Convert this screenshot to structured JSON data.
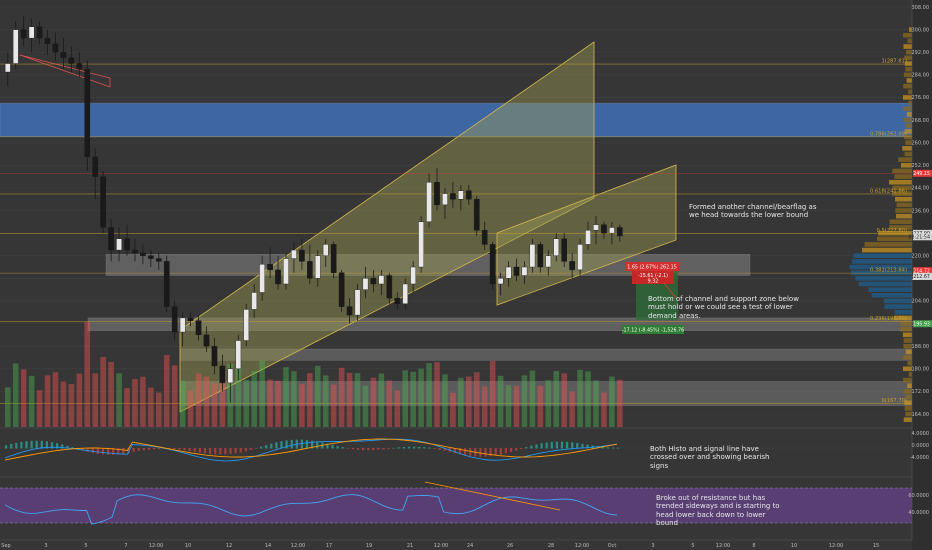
{
  "chart_data": {
    "type": "candlestick",
    "price_axis": {
      "ticks": [
        "308.00",
        "300.00",
        "292.00",
        "284.00",
        "276.00",
        "268.00",
        "260.00",
        "252.00",
        "244.00",
        "236.00",
        "228.00",
        "220.00",
        "212.00",
        "204.00",
        "196.00",
        "188.00",
        "180.00",
        "172.00",
        "164.00"
      ]
    },
    "macd_axis": {
      "ticks": [
        "4.0000",
        "0.0000",
        "-4.0000"
      ]
    },
    "rsi_axis": {
      "ticks": [
        "60.0000",
        "40.0000"
      ]
    },
    "time_axis": {
      "labels": [
        "Sep",
        "3",
        "5",
        "7",
        "12:00",
        "10",
        "12",
        "14",
        "12:00",
        "17",
        "19",
        "21",
        "12:00",
        "24",
        "26",
        "28",
        "12:00",
        "Oct",
        "3",
        "5",
        "12:00",
        "8",
        "10",
        "12:00",
        "15"
      ]
    },
    "fib_levels": [
      {
        "ratio": "1",
        "label": "1(287.81)",
        "price": 287.81
      },
      {
        "ratio": "0.786",
        "label": "0.786(262.09)",
        "price": 262.09
      },
      {
        "ratio": "0.618",
        "label": "0.618(241.86)",
        "price": 241.86
      },
      {
        "ratio": "0.5",
        "label": "0.5(227.80)",
        "price": 227.8
      },
      {
        "ratio": "0.382",
        "label": "0.382(213.84)",
        "price": 213.84
      },
      {
        "ratio": "0.236",
        "label": "0.236(196.70)",
        "price": 196.7
      },
      {
        "ratio": "0",
        "label": "0(167.70)",
        "price": 167.7
      }
    ],
    "price_labels": [
      {
        "text": "249.15",
        "color": "#e53935",
        "price": 249.15
      },
      {
        "text": "227.90",
        "color": "#e0e0e0",
        "price": 227.9
      },
      {
        "text": "03:21:54",
        "color": "#e0e0e0",
        "price": 226.7
      },
      {
        "text": "214.72",
        "color": "#e53935",
        "price": 214.72
      },
      {
        "text": "212.67",
        "color": "#e0e0e0",
        "price": 212.67
      },
      {
        "text": "195.93",
        "color": "#43a047",
        "price": 195.93
      }
    ],
    "position_tool": {
      "stop_label": "1.65 (2.67%) 262.15",
      "stop_sub1": "-15.61 (-2.1)",
      "stop_sub2": "9.32",
      "target_label": "-17.12 (-8.45%) -1,526.76"
    },
    "zones": [
      {
        "kind": "blue-supply",
        "top": 274.0,
        "bottom": 262.0
      },
      {
        "kind": "gray-support",
        "top": 220.5,
        "bottom": 213.0
      },
      {
        "kind": "gray-support",
        "top": 198.0,
        "bottom": 193.5
      },
      {
        "kind": "gray-lower",
        "top": 187.0,
        "bottom": 183.0
      },
      {
        "kind": "gray-lower",
        "top": 175.5,
        "bottom": 167.0
      }
    ],
    "candles": [
      [
        285,
        292,
        280,
        288
      ],
      [
        288,
        303,
        286,
        300
      ],
      [
        300,
        305,
        294,
        297
      ],
      [
        297,
        304,
        292,
        301
      ],
      [
        301,
        303,
        295,
        297
      ],
      [
        297,
        300,
        291,
        295
      ],
      [
        295,
        299,
        289,
        292
      ],
      [
        292,
        297,
        286,
        290
      ],
      [
        290,
        294,
        285,
        288
      ],
      [
        288,
        292,
        283,
        286
      ],
      [
        286,
        289,
        250,
        255
      ],
      [
        255,
        258,
        240,
        248
      ],
      [
        248,
        250,
        228,
        230
      ],
      [
        230,
        233,
        218,
        222
      ],
      [
        222,
        230,
        218,
        226
      ],
      [
        226,
        231,
        220,
        222
      ],
      [
        222,
        226,
        218,
        221
      ],
      [
        221,
        224,
        217,
        220
      ],
      [
        220,
        222,
        216,
        219
      ],
      [
        219,
        221,
        215,
        218
      ],
      [
        218,
        220,
        200,
        202
      ],
      [
        202,
        204,
        190,
        193
      ],
      [
        193,
        200,
        188,
        198
      ],
      [
        198,
        200,
        195,
        197
      ],
      [
        197,
        199,
        190,
        192
      ],
      [
        192,
        195,
        186,
        188
      ],
      [
        188,
        191,
        178,
        181
      ],
      [
        181,
        185,
        172,
        175
      ],
      [
        175,
        182,
        168,
        180
      ],
      [
        180,
        192,
        176,
        190
      ],
      [
        190,
        203,
        188,
        201
      ],
      [
        201,
        210,
        198,
        207
      ],
      [
        207,
        220,
        204,
        217
      ],
      [
        217,
        223,
        212,
        215
      ],
      [
        215,
        220,
        208,
        210
      ],
      [
        210,
        221,
        208,
        219
      ],
      [
        219,
        225,
        214,
        222
      ],
      [
        222,
        226,
        215,
        218
      ],
      [
        218,
        224,
        210,
        212
      ],
      [
        212,
        222,
        209,
        220
      ],
      [
        220,
        226,
        216,
        224
      ],
      [
        224,
        225,
        212,
        214
      ],
      [
        214,
        215,
        200,
        202
      ],
      [
        202,
        205,
        196,
        199
      ],
      [
        199,
        210,
        197,
        208
      ],
      [
        208,
        216,
        205,
        212
      ],
      [
        212,
        215,
        207,
        210
      ],
      [
        210,
        215,
        206,
        213
      ],
      [
        213,
        214,
        203,
        205
      ],
      [
        205,
        207,
        201,
        203
      ],
      [
        203,
        212,
        201,
        210
      ],
      [
        210,
        218,
        207,
        216
      ],
      [
        216,
        234,
        214,
        232
      ],
      [
        232,
        249,
        230,
        246
      ],
      [
        246,
        251,
        236,
        238
      ],
      [
        238,
        244,
        233,
        242
      ],
      [
        242,
        246,
        237,
        240
      ],
      [
        240,
        245,
        236,
        243
      ],
      [
        243,
        245,
        238,
        240
      ],
      [
        240,
        241,
        227,
        229
      ],
      [
        229,
        232,
        222,
        224
      ],
      [
        224,
        225,
        208,
        210
      ],
      [
        210,
        214,
        206,
        212
      ],
      [
        212,
        218,
        209,
        216
      ],
      [
        216,
        219,
        211,
        213
      ],
      [
        213,
        218,
        210,
        216
      ],
      [
        216,
        226,
        214,
        224
      ],
      [
        224,
        225,
        214,
        216
      ],
      [
        216,
        222,
        213,
        220
      ],
      [
        220,
        228,
        218,
        226
      ],
      [
        226,
        228,
        216,
        218
      ],
      [
        218,
        221,
        212,
        215
      ],
      [
        215,
        226,
        213,
        224
      ],
      [
        224,
        232,
        222,
        229
      ],
      [
        229,
        234,
        224,
        231
      ],
      [
        231,
        232,
        226,
        228
      ],
      [
        228,
        232,
        224,
        230
      ],
      [
        230,
        231,
        225,
        227
      ]
    ]
  },
  "notes": {
    "n1": "Formed another channel/bearflag as we head towards the lower bound",
    "n2": "Bottom of channel and support zone below must hold or we could see a test of lower demand areas.",
    "n3": "Both Histo and signal line have crossed over and showing bearish signs",
    "n4": "Broke out of resistance but has trended sideways and is starting to head lower back down to lower bound"
  },
  "colors": {
    "background": "#363636",
    "up": "#4caf50",
    "down": "#ef5350",
    "fib": "#c9a227",
    "channel_fill": "#9a9a55",
    "blue_zone": "#3f6fb5",
    "rsi_band": "#5e3f7d",
    "macd_line": "#2196f3",
    "signal_line": "#ff9800"
  }
}
